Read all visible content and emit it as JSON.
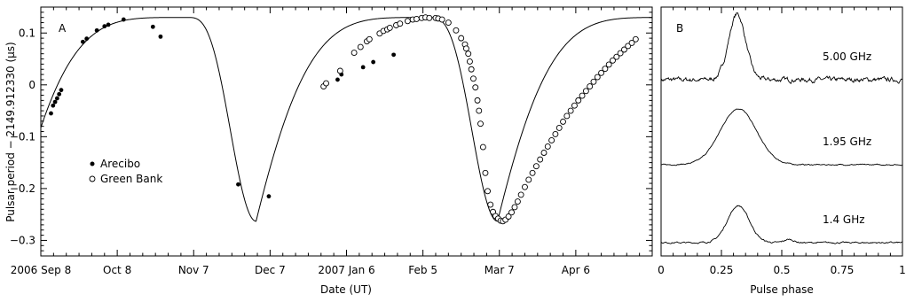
{
  "chart_data": [
    {
      "type": "scatter",
      "panel_label": "A",
      "xlabel": "Date (UT)",
      "ylabel": "Pulsar period − 2149.912330 (μs)",
      "x_ticks": [
        "2006 Sep 8",
        "Oct 8",
        "Nov 7",
        "Dec 7",
        "2007 Jan 6",
        "Feb 5",
        "Mar 7",
        "Apr 6"
      ],
      "x_tick_days": [
        0,
        30,
        60,
        90,
        120,
        150,
        180,
        210
      ],
      "xlim": [
        0,
        240
      ],
      "y_ticks": [
        0.1,
        0,
        -0.1,
        -0.2,
        -0.3
      ],
      "y_tick_labels": [
        "0.1",
        "0",
        "−0.1",
        "−0.2",
        "−0.3"
      ],
      "ylim": [
        -0.33,
        0.15
      ],
      "legend_position": "lower-left",
      "model_curve": {
        "period_days": 94.8,
        "min_value": -0.263,
        "max_value": 0.13,
        "first_min_day": 84.5,
        "first_max_day": 57.6,
        "start_value": -0.183
      },
      "series": [
        {
          "name": "Arecibo",
          "marker": "filled",
          "x_days": [
            4.0,
            4.8,
            5.6,
            6.4,
            7.2,
            8.0,
            16.5,
            18.0,
            22.0,
            25.0,
            26.5,
            32.5,
            44.0,
            47.0,
            77.5,
            89.5,
            111.5,
            116.5,
            118.0,
            126.5,
            130.5,
            138.5
          ],
          "y": [
            -0.055,
            -0.04,
            -0.033,
            -0.026,
            -0.018,
            -0.01,
            0.083,
            0.089,
            0.105,
            0.113,
            0.116,
            0.126,
            0.112,
            0.093,
            -0.192,
            -0.215,
            0.0,
            0.01,
            0.02,
            0.034,
            0.044,
            0.058
          ]
        },
        {
          "name": "Green Bank",
          "marker": "open",
          "x_days": [
            111.0,
            112.0,
            117.5,
            123.0,
            125.5,
            128.0,
            129.0,
            133.0,
            134.5,
            136.0,
            137.0,
            139.5,
            141.0,
            144.0,
            146.0,
            147.5,
            149.5,
            151.0,
            152.5,
            155.0,
            156.0,
            157.5,
            160.0,
            163.0,
            165.0,
            166.5,
            167.0,
            167.8,
            168.4,
            169.0,
            169.8,
            170.6,
            171.4,
            172.0,
            172.6,
            173.6,
            174.5,
            175.4,
            176.5,
            177.5,
            178.5,
            179.5,
            180.5,
            181.4,
            182.4,
            183.6,
            184.8,
            186.0,
            187.2,
            188.5,
            190.0,
            191.5,
            193.0,
            194.5,
            196.0,
            197.5,
            199.0,
            200.5,
            202.0,
            203.5,
            205.0,
            206.5,
            208.0,
            209.5,
            211.0,
            212.5,
            214.0,
            215.5,
            217.0,
            218.5,
            220.0,
            221.5,
            223.0,
            224.5,
            226.0,
            227.5,
            229.0,
            230.5,
            232.0,
            233.5
          ],
          "y": [
            -0.003,
            0.003,
            0.027,
            0.062,
            0.073,
            0.084,
            0.088,
            0.099,
            0.104,
            0.107,
            0.11,
            0.115,
            0.118,
            0.123,
            0.126,
            0.127,
            0.129,
            0.13,
            0.129,
            0.129,
            0.128,
            0.126,
            0.12,
            0.105,
            0.09,
            0.078,
            0.07,
            0.06,
            0.045,
            0.03,
            0.012,
            -0.005,
            -0.03,
            -0.05,
            -0.075,
            -0.12,
            -0.17,
            -0.205,
            -0.231,
            -0.245,
            -0.253,
            -0.258,
            -0.262,
            -0.263,
            -0.26,
            -0.254,
            -0.246,
            -0.236,
            -0.225,
            -0.212,
            -0.197,
            -0.183,
            -0.17,
            -0.157,
            -0.144,
            -0.131,
            -0.119,
            -0.107,
            -0.095,
            -0.083,
            -0.071,
            -0.06,
            -0.05,
            -0.04,
            -0.03,
            -0.021,
            -0.012,
            -0.003,
            0.006,
            0.015,
            0.023,
            0.031,
            0.039,
            0.047,
            0.054,
            0.061,
            0.068,
            0.075,
            0.081,
            0.088
          ]
        }
      ]
    },
    {
      "type": "line",
      "panel_label": "B",
      "xlabel": "Pulse phase",
      "x_ticks": [
        "0",
        "0.25",
        "0.5",
        "0.75",
        "1"
      ],
      "x_tick_values": [
        0,
        0.25,
        0.5,
        0.75,
        1
      ],
      "xlim": [
        0,
        1
      ],
      "series": [
        {
          "name": "5.00 GHz",
          "offset": 2,
          "peak_phase": 0.315,
          "width": 0.035,
          "amplitude": 0.95,
          "noise": 0.07
        },
        {
          "name": "1.95 GHz",
          "offset": 1,
          "peak_phase": 0.32,
          "width": 0.075,
          "amplitude": 0.72,
          "noise": 0.015
        },
        {
          "name": "1.4 GHz",
          "offset": 0,
          "peak_phase": 0.32,
          "width": 0.045,
          "amplitude": 0.58,
          "noise": 0.025
        }
      ]
    }
  ]
}
